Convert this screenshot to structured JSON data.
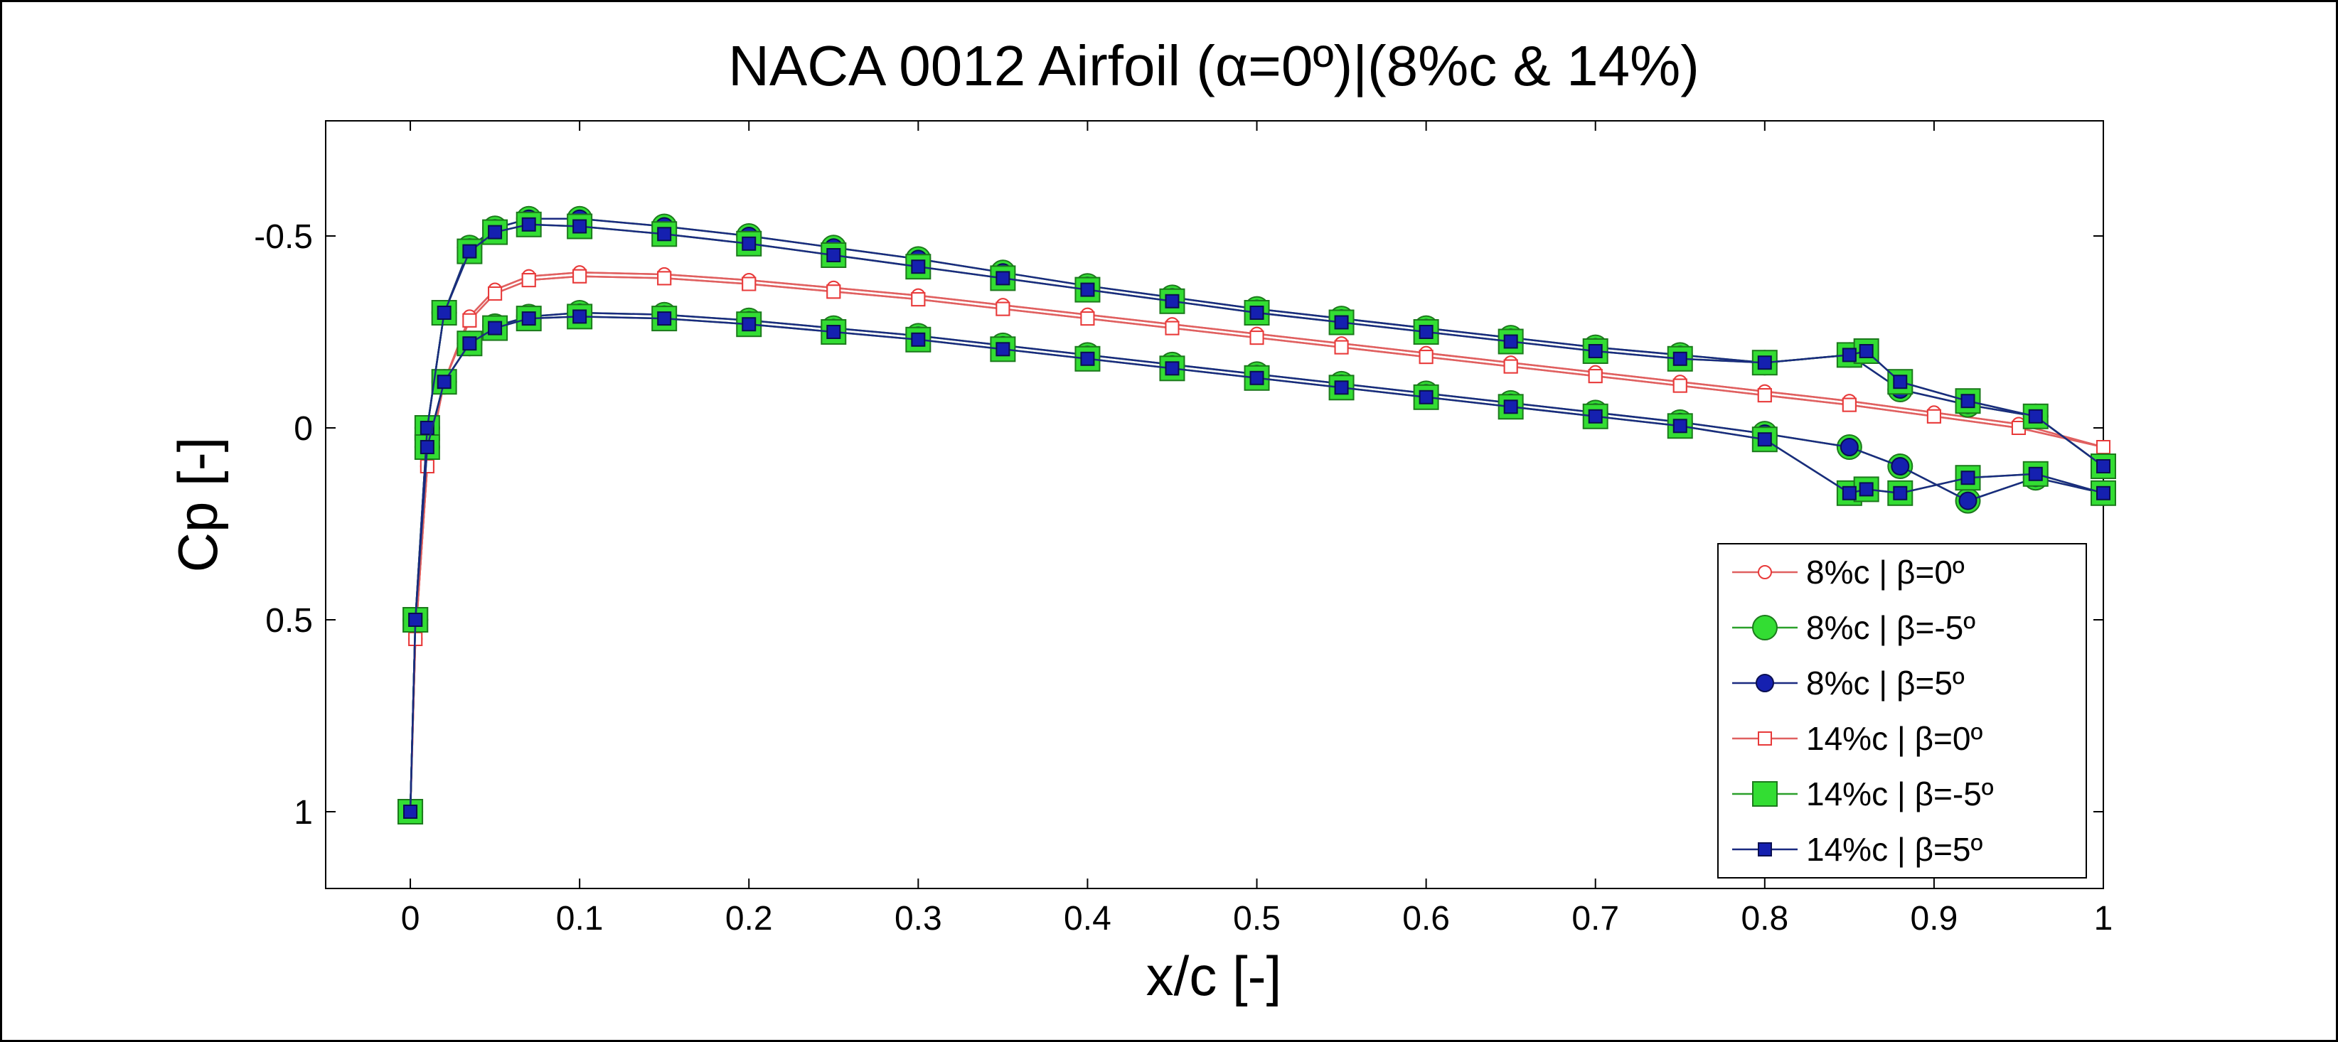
{
  "chart_data": {
    "type": "line",
    "title": "NACA 0012 Airfoil (α=0º)|(8%c & 14%)",
    "xlabel": "x/c [-]",
    "ylabel": "Cp [-]",
    "xlim": [
      -0.05,
      1.0
    ],
    "ylim": [
      1.2,
      -0.8
    ],
    "y_reversed": true,
    "grid": false,
    "legend_position": "lower-right",
    "x_ticks": [
      0,
      0.1,
      0.2,
      0.3,
      0.4,
      0.5,
      0.6,
      0.7,
      0.8,
      0.9,
      1
    ],
    "x_tick_labels": [
      "0",
      "0.1",
      "0.2",
      "0.3",
      "0.4",
      "0.5",
      "0.6",
      "0.7",
      "0.8",
      "0.9",
      "1"
    ],
    "y_ticks": [
      -0.5,
      0,
      0.5,
      1
    ],
    "y_tick_labels": [
      "-0.5",
      "0",
      "0.5",
      "1"
    ],
    "series": [
      {
        "name": "8%c | β=0º",
        "color": "#e83a3a",
        "line_color": "#e06060",
        "marker": "circle-open",
        "marker_size": "small",
        "upper": {
          "x": [
            0,
            0.003,
            0.01,
            0.02,
            0.035,
            0.05,
            0.07,
            0.1,
            0.15,
            0.2,
            0.25,
            0.3,
            0.35,
            0.4,
            0.45,
            0.5,
            0.55,
            0.6,
            0.65,
            0.7,
            0.75,
            0.8,
            0.85,
            0.9,
            0.95,
            1.0
          ],
          "y": [
            1.0,
            0.55,
            0.1,
            -0.12,
            -0.29,
            -0.36,
            -0.395,
            -0.405,
            -0.4,
            -0.385,
            -0.365,
            -0.345,
            -0.32,
            -0.295,
            -0.27,
            -0.245,
            -0.22,
            -0.195,
            -0.17,
            -0.145,
            -0.12,
            -0.095,
            -0.07,
            -0.04,
            -0.01,
            0.05
          ]
        },
        "lower": {
          "x": [
            0,
            0.003,
            0.01,
            0.02,
            0.035,
            0.05,
            0.07,
            0.1,
            0.15,
            0.2,
            0.25,
            0.3,
            0.35,
            0.4,
            0.45,
            0.5,
            0.55,
            0.6,
            0.65,
            0.7,
            0.75,
            0.8,
            0.85,
            0.9,
            0.95,
            1.0
          ],
          "y": [
            1.0,
            0.55,
            0.1,
            -0.12,
            -0.29,
            -0.36,
            -0.395,
            -0.405,
            -0.4,
            -0.385,
            -0.365,
            -0.345,
            -0.32,
            -0.295,
            -0.27,
            -0.245,
            -0.22,
            -0.195,
            -0.17,
            -0.145,
            -0.12,
            -0.095,
            -0.07,
            -0.04,
            -0.01,
            0.05
          ]
        }
      },
      {
        "name": "8%c | β=-5º",
        "color": "#33dd33",
        "line_color": "#2aa02a",
        "marker": "circle-filled",
        "marker_size": "large",
        "upper": {
          "x": [
            0,
            0.003,
            0.01,
            0.02,
            0.035,
            0.05,
            0.07,
            0.1,
            0.15,
            0.2,
            0.25,
            0.3,
            0.35,
            0.4,
            0.45,
            0.5,
            0.55,
            0.6,
            0.65,
            0.7,
            0.75,
            0.8,
            0.85,
            0.88,
            0.92,
            0.96,
            1.0
          ],
          "y": [
            1.0,
            0.5,
            0.0,
            -0.3,
            -0.47,
            -0.52,
            -0.545,
            -0.545,
            -0.525,
            -0.5,
            -0.47,
            -0.44,
            -0.405,
            -0.37,
            -0.34,
            -0.31,
            -0.285,
            -0.26,
            -0.235,
            -0.21,
            -0.19,
            -0.17,
            -0.19,
            -0.1,
            -0.06,
            -0.03,
            0.1
          ]
        },
        "lower": {
          "x": [
            0,
            0.003,
            0.01,
            0.02,
            0.035,
            0.05,
            0.07,
            0.1,
            0.15,
            0.2,
            0.25,
            0.3,
            0.35,
            0.4,
            0.45,
            0.5,
            0.55,
            0.6,
            0.65,
            0.7,
            0.75,
            0.8,
            0.85,
            0.88,
            0.92,
            0.96,
            1.0
          ],
          "y": [
            1.0,
            0.5,
            0.05,
            -0.12,
            -0.22,
            -0.265,
            -0.29,
            -0.3,
            -0.295,
            -0.28,
            -0.26,
            -0.24,
            -0.215,
            -0.19,
            -0.165,
            -0.14,
            -0.115,
            -0.09,
            -0.065,
            -0.04,
            -0.015,
            0.015,
            0.05,
            0.1,
            0.19,
            0.13,
            0.17
          ]
        }
      },
      {
        "name": "8%c | β=5º",
        "color": "#1520b0",
        "line_color": "#1a2a80",
        "marker": "circle-filled",
        "marker_size": "medium",
        "upper": {
          "x": [
            0,
            0.003,
            0.01,
            0.02,
            0.035,
            0.05,
            0.07,
            0.1,
            0.15,
            0.2,
            0.25,
            0.3,
            0.35,
            0.4,
            0.45,
            0.5,
            0.55,
            0.6,
            0.65,
            0.7,
            0.75,
            0.8,
            0.85,
            0.88,
            0.92,
            0.96,
            1.0
          ],
          "y": [
            1.0,
            0.5,
            0.0,
            -0.3,
            -0.47,
            -0.52,
            -0.545,
            -0.545,
            -0.525,
            -0.5,
            -0.47,
            -0.44,
            -0.405,
            -0.37,
            -0.34,
            -0.31,
            -0.285,
            -0.26,
            -0.235,
            -0.21,
            -0.19,
            -0.17,
            -0.19,
            -0.1,
            -0.06,
            -0.03,
            0.1
          ]
        },
        "lower": {
          "x": [
            0,
            0.003,
            0.01,
            0.02,
            0.035,
            0.05,
            0.07,
            0.1,
            0.15,
            0.2,
            0.25,
            0.3,
            0.35,
            0.4,
            0.45,
            0.5,
            0.55,
            0.6,
            0.65,
            0.7,
            0.75,
            0.8,
            0.85,
            0.88,
            0.92,
            0.96,
            1.0
          ],
          "y": [
            1.0,
            0.5,
            0.05,
            -0.12,
            -0.22,
            -0.265,
            -0.29,
            -0.3,
            -0.295,
            -0.28,
            -0.26,
            -0.24,
            -0.215,
            -0.19,
            -0.165,
            -0.14,
            -0.115,
            -0.09,
            -0.065,
            -0.04,
            -0.015,
            0.015,
            0.05,
            0.1,
            0.19,
            0.13,
            0.17
          ]
        }
      },
      {
        "name": "14%c | β=0º",
        "color": "#e83a3a",
        "line_color": "#e06060",
        "marker": "square-open",
        "marker_size": "small",
        "upper": {
          "x": [
            0,
            0.003,
            0.01,
            0.02,
            0.035,
            0.05,
            0.07,
            0.1,
            0.15,
            0.2,
            0.25,
            0.3,
            0.35,
            0.4,
            0.45,
            0.5,
            0.55,
            0.6,
            0.65,
            0.7,
            0.75,
            0.8,
            0.85,
            0.9,
            0.95,
            1.0
          ],
          "y": [
            1.0,
            0.55,
            0.1,
            -0.12,
            -0.28,
            -0.35,
            -0.385,
            -0.395,
            -0.39,
            -0.375,
            -0.355,
            -0.335,
            -0.31,
            -0.285,
            -0.26,
            -0.235,
            -0.21,
            -0.185,
            -0.16,
            -0.135,
            -0.11,
            -0.085,
            -0.06,
            -0.03,
            0.0,
            0.05
          ]
        },
        "lower": {
          "x": [
            0,
            0.003,
            0.01,
            0.02,
            0.035,
            0.05,
            0.07,
            0.1,
            0.15,
            0.2,
            0.25,
            0.3,
            0.35,
            0.4,
            0.45,
            0.5,
            0.55,
            0.6,
            0.65,
            0.7,
            0.75,
            0.8,
            0.85,
            0.9,
            0.95,
            1.0
          ],
          "y": [
            1.0,
            0.55,
            0.1,
            -0.12,
            -0.28,
            -0.35,
            -0.385,
            -0.395,
            -0.39,
            -0.375,
            -0.355,
            -0.335,
            -0.31,
            -0.285,
            -0.26,
            -0.235,
            -0.21,
            -0.185,
            -0.16,
            -0.135,
            -0.11,
            -0.085,
            -0.06,
            -0.03,
            0.0,
            0.05
          ]
        }
      },
      {
        "name": "14%c | β=-5º",
        "color": "#33dd33",
        "line_color": "#2aa02a",
        "marker": "square-filled",
        "marker_size": "large",
        "upper": {
          "x": [
            0,
            0.003,
            0.01,
            0.02,
            0.035,
            0.05,
            0.07,
            0.1,
            0.15,
            0.2,
            0.25,
            0.3,
            0.35,
            0.4,
            0.45,
            0.5,
            0.55,
            0.6,
            0.65,
            0.7,
            0.75,
            0.8,
            0.85,
            0.86,
            0.88,
            0.92,
            0.96,
            1.0
          ],
          "y": [
            1.0,
            0.5,
            0.0,
            -0.3,
            -0.46,
            -0.51,
            -0.53,
            -0.525,
            -0.505,
            -0.48,
            -0.45,
            -0.42,
            -0.39,
            -0.36,
            -0.33,
            -0.3,
            -0.275,
            -0.25,
            -0.225,
            -0.2,
            -0.18,
            -0.17,
            -0.19,
            -0.2,
            -0.12,
            -0.07,
            -0.03,
            0.1
          ]
        },
        "lower": {
          "x": [
            0,
            0.003,
            0.01,
            0.02,
            0.035,
            0.05,
            0.07,
            0.1,
            0.15,
            0.2,
            0.25,
            0.3,
            0.35,
            0.4,
            0.45,
            0.5,
            0.55,
            0.6,
            0.65,
            0.7,
            0.75,
            0.8,
            0.85,
            0.86,
            0.88,
            0.92,
            0.96,
            1.0
          ],
          "y": [
            1.0,
            0.5,
            0.05,
            -0.12,
            -0.22,
            -0.26,
            -0.285,
            -0.29,
            -0.285,
            -0.27,
            -0.25,
            -0.23,
            -0.205,
            -0.18,
            -0.155,
            -0.13,
            -0.105,
            -0.08,
            -0.055,
            -0.03,
            -0.005,
            0.03,
            0.17,
            0.16,
            0.17,
            0.13,
            0.12,
            0.17
          ]
        }
      },
      {
        "name": "14%c | β=5º",
        "color": "#1520b0",
        "line_color": "#1a2a80",
        "marker": "square-filled",
        "marker_size": "small",
        "upper": {
          "x": [
            0,
            0.003,
            0.01,
            0.02,
            0.035,
            0.05,
            0.07,
            0.1,
            0.15,
            0.2,
            0.25,
            0.3,
            0.35,
            0.4,
            0.45,
            0.5,
            0.55,
            0.6,
            0.65,
            0.7,
            0.75,
            0.8,
            0.85,
            0.86,
            0.88,
            0.92,
            0.96,
            1.0
          ],
          "y": [
            1.0,
            0.5,
            0.0,
            -0.3,
            -0.46,
            -0.51,
            -0.53,
            -0.525,
            -0.505,
            -0.48,
            -0.45,
            -0.42,
            -0.39,
            -0.36,
            -0.33,
            -0.3,
            -0.275,
            -0.25,
            -0.225,
            -0.2,
            -0.18,
            -0.17,
            -0.19,
            -0.2,
            -0.12,
            -0.07,
            -0.03,
            0.1
          ]
        },
        "lower": {
          "x": [
            0,
            0.003,
            0.01,
            0.02,
            0.035,
            0.05,
            0.07,
            0.1,
            0.15,
            0.2,
            0.25,
            0.3,
            0.35,
            0.4,
            0.45,
            0.5,
            0.55,
            0.6,
            0.65,
            0.7,
            0.75,
            0.8,
            0.85,
            0.86,
            0.88,
            0.92,
            0.96,
            1.0
          ],
          "y": [
            1.0,
            0.5,
            0.05,
            -0.12,
            -0.22,
            -0.26,
            -0.285,
            -0.29,
            -0.285,
            -0.27,
            -0.25,
            -0.23,
            -0.205,
            -0.18,
            -0.155,
            -0.13,
            -0.105,
            -0.08,
            -0.055,
            -0.03,
            -0.005,
            0.03,
            0.17,
            0.16,
            0.17,
            0.13,
            0.12,
            0.17
          ]
        }
      }
    ]
  }
}
